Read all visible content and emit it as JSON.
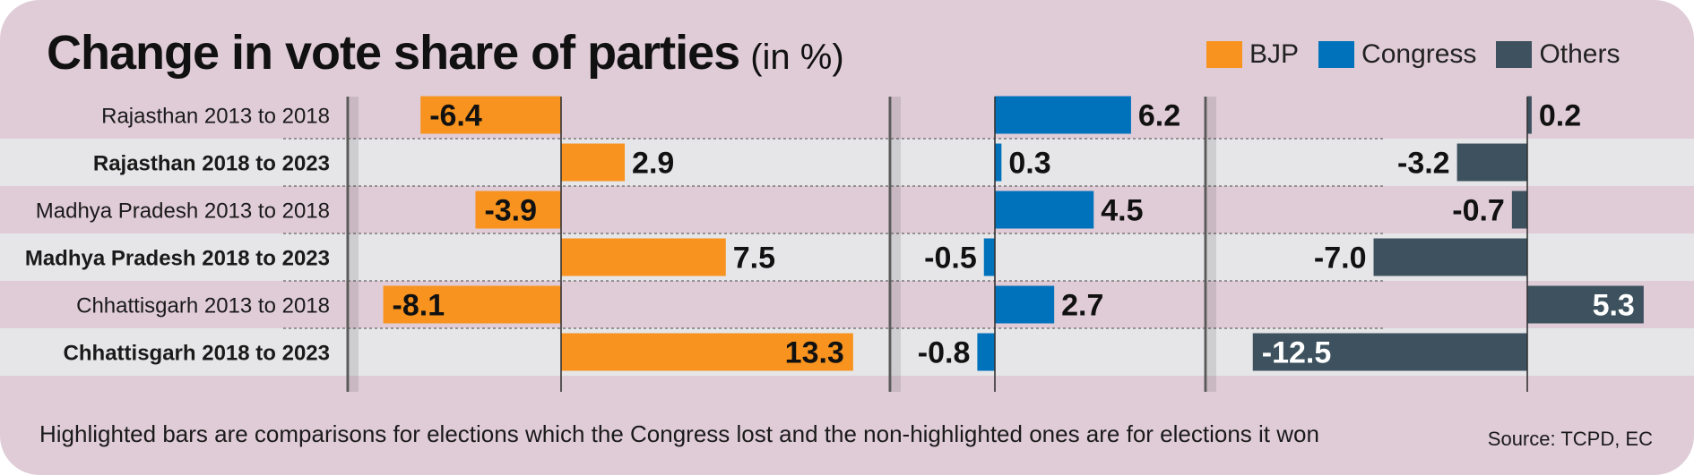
{
  "title": "Change in vote share of parties",
  "subtitle": "(in %)",
  "legend": [
    {
      "name": "BJP",
      "color": "#f7931e"
    },
    {
      "name": "Congress",
      "color": "#0072bc"
    },
    {
      "name": "Others",
      "color": "#3d525e"
    }
  ],
  "chart_data": {
    "type": "bar",
    "orientation": "horizontal",
    "categories": [
      "Rajasthan 2013 to 2018",
      "Rajasthan 2018 to 2023",
      "Madhya Pradesh 2013 to 2018",
      "Madhya Pradesh 2018 to 2023",
      "Chhattisgarh 2013 to 2018",
      "Chhattisgarh 2018 to 2023"
    ],
    "highlighted": [
      false,
      true,
      false,
      true,
      false,
      true
    ],
    "series": [
      {
        "name": "BJP",
        "color": "#f7931e",
        "values": [
          -6.4,
          2.9,
          -3.9,
          7.5,
          -8.1,
          13.3
        ],
        "labels": [
          "-6.4",
          "2.9",
          "-3.9",
          "7.5",
          "-8.1",
          "13.3"
        ]
      },
      {
        "name": "Congress",
        "color": "#0072bc",
        "values": [
          6.2,
          0.3,
          4.5,
          -0.5,
          2.7,
          -0.8
        ],
        "labels": [
          "6.2",
          "0.3",
          "4.5",
          "-0.5",
          "2.7",
          "-0.8"
        ]
      },
      {
        "name": "Others",
        "color": "#3d525e",
        "values": [
          0.2,
          -3.2,
          -0.7,
          -7.0,
          5.3,
          -12.5
        ],
        "labels": [
          "0.2",
          "-3.2",
          "-0.7",
          "-7.0",
          "5.3",
          "-12.5"
        ]
      }
    ]
  },
  "footnote": "Highlighted bars are comparisons for elections which the Congress lost and the non-highlighted ones are for elections it won",
  "source": "Source: TCPD, EC"
}
